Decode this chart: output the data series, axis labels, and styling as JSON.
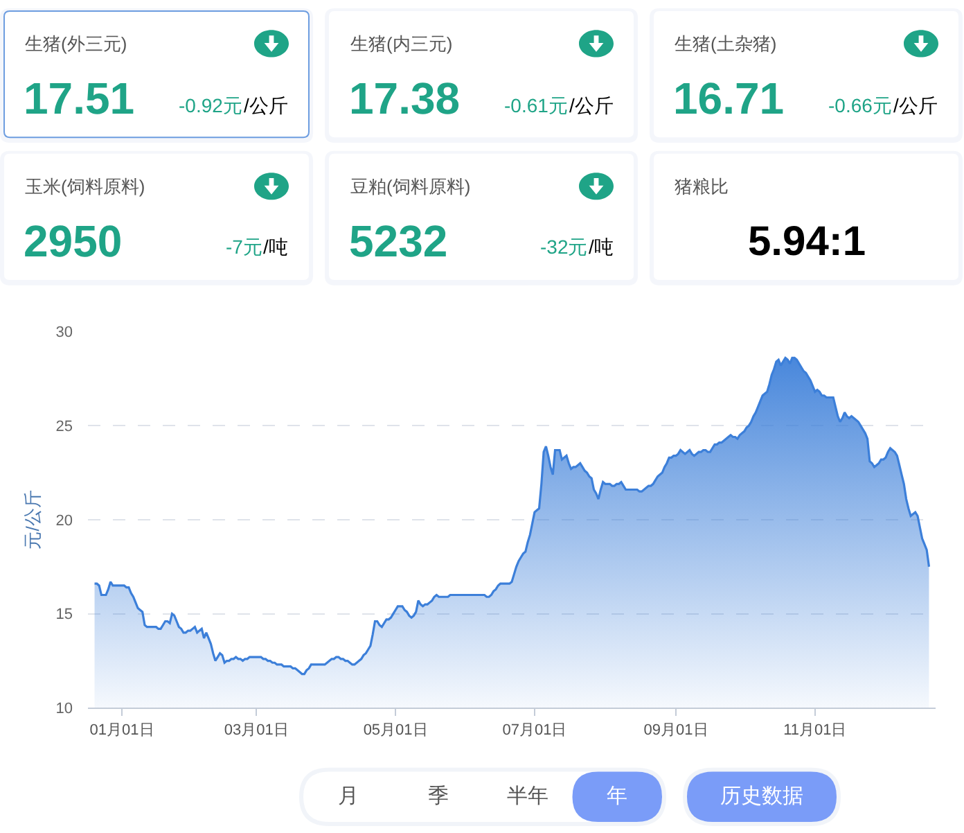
{
  "chart_data": [
    {
      "type": "other",
      "title": "生猪(外三元)",
      "annotations": [
        "17.51",
        "-0.92元",
        "/公斤"
      ],
      "color": "#1fa487"
    },
    {
      "type": "other",
      "title": "生猪(内三元)",
      "annotations": [
        "17.38",
        "-0.61元",
        "/公斤"
      ],
      "color": "#1fa487"
    },
    {
      "type": "other",
      "title": "生猪(土杂猪)",
      "annotations": [
        "16.71",
        "-0.66元",
        "/公斤"
      ],
      "color": "#1fa487"
    },
    {
      "type": "other",
      "title": "玉米(饲料原料)",
      "annotations": [
        "2950",
        "-7元",
        "/吨"
      ],
      "color": "#1fa487"
    },
    {
      "type": "other",
      "title": "豆粕(饲料原料)",
      "annotations": [
        "5232",
        "-32元",
        "/吨"
      ],
      "color": "#1fa487"
    },
    {
      "type": "other",
      "title": "猪粮比",
      "annotations": [
        "5.94:1"
      ],
      "color": "#000000"
    },
    {
      "type": "area",
      "ylabel": "元/公斤",
      "color": "#3c7fd9",
      "categories": [
        null,
        null,
        null,
        null,
        null,
        null,
        null,
        null,
        null,
        null,
        null,
        null,
        "01月01日",
        null,
        null,
        null,
        null,
        null,
        null,
        null,
        null,
        null,
        null,
        null,
        null,
        null,
        null,
        null,
        null,
        null,
        null,
        null,
        null,
        null,
        null,
        null,
        null,
        null,
        null,
        null,
        null,
        null,
        null,
        null,
        null,
        null,
        null,
        null,
        null,
        null,
        null,
        null,
        null,
        null,
        null,
        null,
        null,
        null,
        null,
        null,
        null,
        null,
        null,
        null,
        null,
        null,
        null,
        null,
        null,
        null,
        null,
        "03月01日",
        null,
        null,
        null,
        null,
        null,
        null,
        null,
        null,
        null,
        null,
        null,
        null,
        null,
        null,
        null,
        null,
        null,
        null,
        null,
        null,
        null,
        null,
        null,
        null,
        null,
        null,
        null,
        null,
        null,
        null,
        null,
        null,
        null,
        null,
        null,
        null,
        null,
        null,
        null,
        null,
        null,
        null,
        null,
        null,
        null,
        null,
        null,
        null,
        null,
        null,
        null,
        null,
        null,
        null,
        null,
        null,
        null,
        null,
        null,
        null,
        "05月01日",
        null,
        null,
        null,
        null,
        null,
        null,
        null,
        null,
        null,
        null,
        null,
        null,
        null,
        null,
        null,
        null,
        null,
        null,
        null,
        null,
        null,
        null,
        null,
        null,
        null,
        null,
        null,
        null,
        null,
        null,
        null,
        null,
        null,
        null,
        null,
        null,
        null,
        null,
        null,
        null,
        null,
        null,
        null,
        null,
        null,
        null,
        null,
        null,
        null,
        null,
        null,
        null,
        null,
        null,
        null,
        null,
        null,
        null,
        null,
        null,
        "07月01日",
        null,
        null,
        null,
        null,
        null,
        null,
        null,
        null,
        null,
        null,
        null,
        null,
        null,
        null,
        null,
        null,
        null,
        null,
        null,
        null,
        null,
        null,
        null,
        null,
        null,
        null,
        null,
        null,
        null,
        null,
        null,
        null,
        null,
        null,
        null,
        null,
        null,
        null,
        null,
        null,
        null,
        null,
        null,
        null,
        null,
        null,
        null,
        null,
        null,
        null,
        null,
        null,
        null,
        null,
        null,
        null,
        null,
        null,
        null,
        null,
        null,
        "09月01日",
        null,
        null,
        null,
        null,
        null,
        null,
        null,
        null,
        null,
        null,
        null,
        null,
        null,
        null,
        null,
        null,
        null,
        null,
        null,
        null,
        null,
        null,
        null,
        null,
        null,
        null,
        null,
        null,
        null,
        null,
        null,
        null,
        null,
        null,
        null,
        null,
        null,
        null,
        null,
        null,
        null,
        null,
        null,
        null,
        null,
        null,
        null,
        null,
        null,
        null,
        null,
        null,
        null,
        null,
        null,
        null,
        null,
        null,
        null,
        null,
        "11月01日",
        null,
        null,
        null,
        null,
        null,
        null,
        null,
        null,
        null,
        null,
        null,
        null,
        null,
        null,
        null,
        null,
        null,
        null,
        null,
        null,
        null,
        null,
        null,
        null,
        null,
        null,
        null,
        null,
        null,
        null,
        null,
        null,
        null,
        null,
        null,
        null,
        null,
        null,
        null,
        null,
        null,
        null,
        null,
        null,
        null,
        null,
        null,
        null,
        null,
        null
      ],
      "values": [
        16.6,
        16.6,
        16.5,
        16.0,
        16.0,
        16.0,
        16.3,
        16.7,
        16.5,
        16.5,
        16.5,
        16.5,
        16.5,
        16.5,
        16.4,
        16.4,
        16.1,
        15.9,
        15.6,
        15.3,
        15.2,
        15.1,
        14.4,
        14.3,
        14.3,
        14.3,
        14.3,
        14.3,
        14.2,
        14.2,
        14.4,
        14.6,
        14.6,
        14.5,
        15.0,
        14.9,
        14.6,
        14.3,
        14.2,
        14.0,
        14.0,
        14.1,
        14.1,
        14.2,
        14.3,
        14.0,
        14.1,
        14.2,
        13.7,
        14.0,
        13.7,
        13.4,
        12.9,
        12.5,
        12.7,
        12.9,
        12.8,
        12.4,
        12.5,
        12.5,
        12.6,
        12.6,
        12.7,
        12.6,
        12.6,
        12.5,
        12.6,
        12.6,
        12.7,
        12.7,
        12.7,
        12.7,
        12.7,
        12.7,
        12.6,
        12.6,
        12.5,
        12.5,
        12.4,
        12.4,
        12.3,
        12.3,
        12.3,
        12.2,
        12.2,
        12.2,
        12.2,
        12.1,
        12.1,
        12.0,
        11.9,
        11.8,
        11.8,
        12.0,
        12.1,
        12.3,
        12.3,
        12.3,
        12.3,
        12.3,
        12.3,
        12.3,
        12.4,
        12.5,
        12.6,
        12.6,
        12.7,
        12.7,
        12.6,
        12.6,
        12.5,
        12.5,
        12.4,
        12.3,
        12.3,
        12.4,
        12.5,
        12.6,
        12.8,
        12.9,
        13.1,
        13.3,
        13.9,
        14.6,
        14.6,
        14.4,
        14.3,
        14.5,
        14.7,
        14.7,
        14.8,
        15.0,
        15.2,
        15.4,
        15.4,
        15.4,
        15.2,
        15.1,
        14.9,
        14.8,
        14.9,
        15.1,
        15.7,
        15.5,
        15.4,
        15.5,
        15.5,
        15.6,
        15.7,
        15.9,
        16.0,
        15.9,
        15.9,
        15.9,
        15.9,
        15.9,
        16.0,
        16.0,
        16.0,
        16.0,
        16.0,
        16.0,
        16.0,
        16.0,
        16.0,
        16.0,
        16.0,
        16.0,
        16.0,
        16.0,
        16.0,
        16.0,
        15.9,
        15.9,
        16.0,
        16.2,
        16.3,
        16.5,
        16.6,
        16.6,
        16.6,
        16.6,
        16.6,
        16.7,
        17.1,
        17.5,
        17.8,
        18.0,
        18.2,
        18.3,
        18.8,
        19.2,
        19.8,
        20.4,
        20.5,
        20.6,
        21.9,
        23.6,
        23.9,
        23.4,
        22.8,
        22.4,
        23.7,
        23.7,
        23.7,
        23.2,
        23.3,
        23.4,
        23.0,
        22.7,
        22.8,
        22.8,
        22.9,
        23.0,
        22.8,
        22.6,
        22.5,
        22.3,
        22.2,
        21.6,
        21.4,
        21.1,
        21.6,
        22.0,
        21.9,
        21.9,
        21.9,
        21.8,
        21.8,
        21.9,
        21.9,
        22.0,
        21.8,
        21.6,
        21.6,
        21.6,
        21.6,
        21.6,
        21.6,
        21.5,
        21.5,
        21.6,
        21.7,
        21.8,
        21.8,
        21.9,
        22.1,
        22.3,
        22.4,
        22.5,
        22.8,
        23.0,
        23.3,
        23.3,
        23.4,
        23.4,
        23.5,
        23.7,
        23.6,
        23.5,
        23.6,
        23.7,
        23.5,
        23.4,
        23.5,
        23.6,
        23.6,
        23.7,
        23.7,
        23.6,
        23.6,
        23.8,
        24.0,
        24.0,
        24.1,
        24.1,
        24.2,
        24.3,
        24.4,
        24.5,
        24.4,
        24.4,
        24.3,
        24.5,
        24.6,
        24.7,
        24.9,
        25.0,
        25.2,
        25.5,
        25.7,
        26.0,
        26.3,
        26.6,
        26.7,
        26.8,
        27.2,
        27.7,
        28.0,
        28.4,
        28.5,
        28.2,
        28.4,
        28.6,
        28.5,
        28.3,
        28.6,
        28.6,
        28.5,
        28.3,
        28.1,
        27.9,
        27.8,
        27.6,
        27.4,
        27.1,
        26.8,
        26.9,
        26.8,
        26.6,
        26.6,
        26.5,
        26.5,
        26.5,
        26.5,
        26.0,
        25.5,
        25.2,
        25.4,
        25.7,
        25.5,
        25.4,
        25.5,
        25.4,
        25.3,
        25.2,
        25.0,
        24.8,
        24.6,
        24.3,
        23.1,
        23.0,
        22.8,
        22.9,
        23.0,
        23.2,
        23.2,
        23.3,
        23.6,
        23.8,
        23.7,
        23.6,
        23.4,
        22.9,
        22.4,
        21.9,
        21.1,
        20.6,
        20.2,
        20.3,
        20.4,
        20.2,
        19.6,
        19.0,
        18.7,
        18.4,
        17.5
      ],
      "ylim": [
        10,
        30
      ],
      "yticks": [
        10,
        15,
        20,
        25,
        30
      ],
      "grid": "y"
    },
    {
      "type": "other",
      "categories": [
        "月",
        "季",
        "半年",
        "年"
      ],
      "colors": [
        "#ffffff",
        "#ffffff",
        "#ffffff",
        "#7a9cf8"
      ],
      "annotations": [
        "历史数据"
      ],
      "color": "#7a9cf8"
    }
  ]
}
